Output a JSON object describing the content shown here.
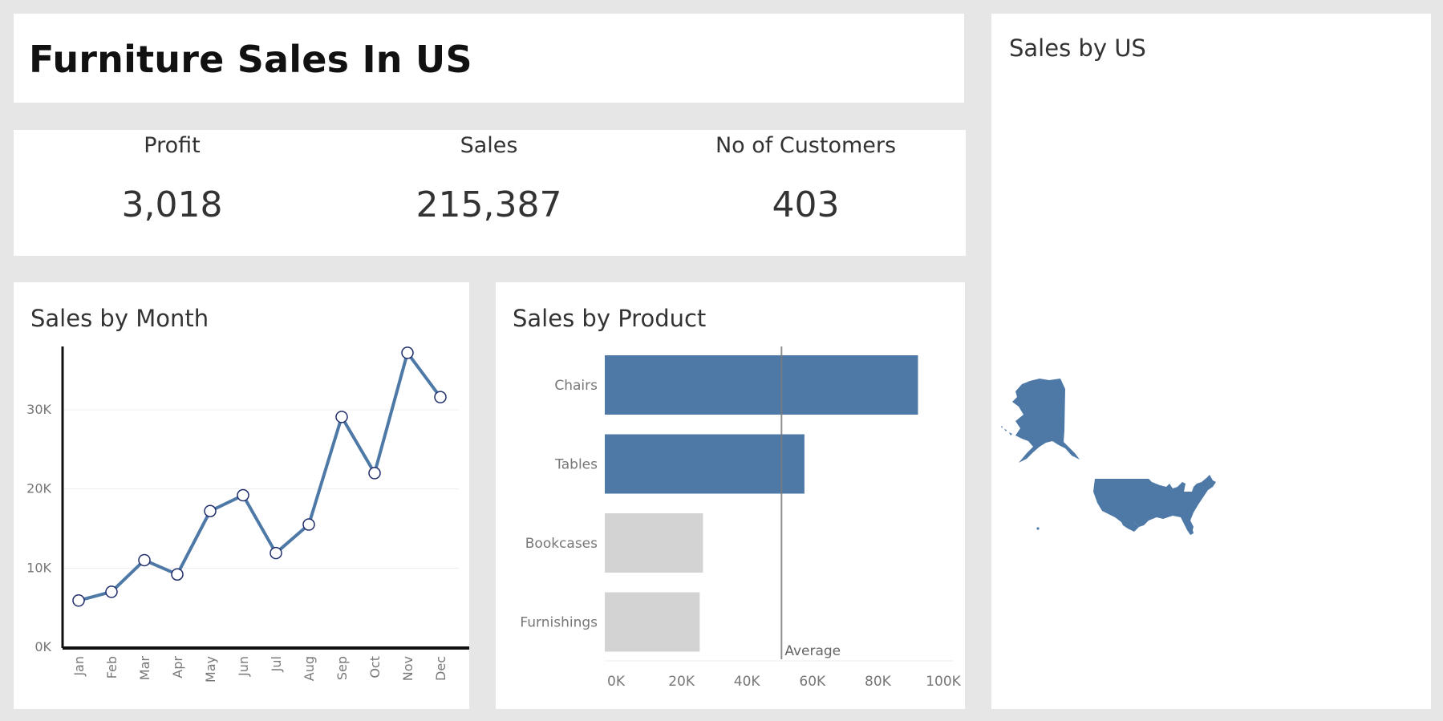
{
  "dashboard": {
    "title": "Furniture Sales In US"
  },
  "kpis": [
    {
      "label": "Profit",
      "value": "3,018"
    },
    {
      "label": "Sales",
      "value": "215,387"
    },
    {
      "label": "No of Customers",
      "value": "403"
    }
  ],
  "colors": {
    "primary": "#4e79a7",
    "muted": "#d3d3d3",
    "marker_stroke": "#1f2d6b",
    "average_line": "#7a7a7a"
  },
  "chart_data": [
    {
      "type": "line",
      "title": "Sales by Month",
      "categories": [
        "Jan",
        "Feb",
        "Mar",
        "Apr",
        "May",
        "Jun",
        "Jul",
        "Aug",
        "Sep",
        "Oct",
        "Nov",
        "Dec"
      ],
      "values": [
        5900,
        7000,
        11000,
        9200,
        17200,
        19200,
        11900,
        15500,
        29100,
        22000,
        37200,
        31600
      ],
      "ylim": [
        0,
        38000
      ],
      "yticks": [
        0,
        10000,
        20000,
        30000
      ],
      "ytick_labels": [
        "0K",
        "10K",
        "20K",
        "30K"
      ],
      "grid": true
    },
    {
      "type": "bar",
      "orientation": "horizontal",
      "title": "Sales by Product",
      "categories": [
        "Chairs",
        "Tables",
        "Bookcases",
        "Furnishings"
      ],
      "values": [
        95700,
        61000,
        30000,
        29000
      ],
      "highlight": [
        true,
        true,
        false,
        false
      ],
      "xlim": [
        0,
        100000
      ],
      "xticks": [
        0,
        20000,
        40000,
        60000,
        80000,
        100000
      ],
      "xtick_labels": [
        "0K",
        "20K",
        "40K",
        "60K",
        "80K",
        "100K"
      ],
      "reference_line": {
        "label": "Average",
        "value": 54000
      }
    }
  ],
  "map": {
    "title": "Sales by US"
  }
}
